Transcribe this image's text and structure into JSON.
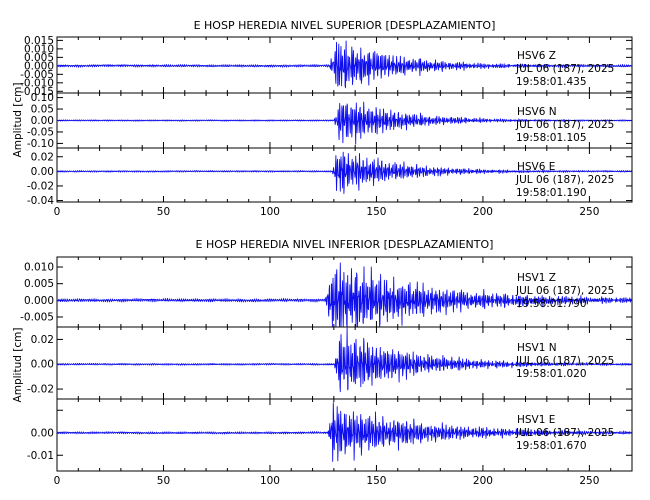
{
  "chart_data": [
    {
      "type": "line",
      "title": "E HOSP HEREDIA NIVEL SUPERIOR [DESPLAZAMIENTO]",
      "ylabel": "Amplitud [cm]",
      "xlabel": "",
      "xlim": [
        0,
        270
      ],
      "xticks": [
        "0",
        "50",
        "100",
        "150",
        "200",
        "250"
      ],
      "panels": [
        {
          "station": "HSV6",
          "component": "Z",
          "date": "JUL 06 (187), 2025",
          "time": "19:58:01.435",
          "ylim": [
            -0.016,
            0.017
          ],
          "yticks": [
            "0.015",
            "0.010",
            "0.005",
            "0.000",
            "-0.005",
            "-0.010",
            "-0.015"
          ],
          "peak": 0.015,
          "pre": 0.0006,
          "onset": 128,
          "decay": 28,
          "seed": 1
        },
        {
          "station": "HSV6",
          "component": "N",
          "date": "JUL 06 (187), 2025",
          "time": "19:58:01.105",
          "ylim": [
            -0.12,
            0.12
          ],
          "yticks": [
            "0.10",
            "0.05",
            "0.00",
            "-0.05",
            "-0.10"
          ],
          "peak": 0.1,
          "pre": 0.0025,
          "onset": 130,
          "decay": 26,
          "seed": 2
        },
        {
          "station": "HSV6",
          "component": "E",
          "date": "JUL 06 (187), 2025",
          "time": "19:58:01.190",
          "ylim": [
            -0.042,
            0.032
          ],
          "yticks": [
            "0.02",
            "0.00",
            "-0.02",
            "-0.04"
          ],
          "peak": 0.03,
          "pre": 0.0009,
          "onset": 129,
          "decay": 27,
          "seed": 3
        }
      ]
    },
    {
      "type": "line",
      "title": "E HOSP HEREDIA NIVEL INFERIOR [DESPLAZAMIENTO]",
      "ylabel": "Amplitud [cm]",
      "xlabel": "",
      "xlim": [
        0,
        270
      ],
      "xticks": [
        "0",
        "50",
        "100",
        "150",
        "200",
        "250"
      ],
      "panels": [
        {
          "station": "HSV1",
          "component": "Z",
          "date": "JUL 06 (187), 2025",
          "time": "19:58:01.790",
          "ylim": [
            -0.008,
            0.013
          ],
          "yticks": [
            "0.010",
            "0.005",
            "0.000",
            "-0.005"
          ],
          "peak": 0.011,
          "pre": 0.0004,
          "onset": 126,
          "decay": 45,
          "seed": 4
        },
        {
          "station": "HSV1",
          "component": "N",
          "date": "JUL 06 (187), 2025",
          "time": "19:58:01.020",
          "ylim": [
            -0.028,
            0.03
          ],
          "yticks": [
            "0.02",
            "0.00",
            "-0.02"
          ],
          "peak": 0.025,
          "pre": 0.0006,
          "onset": 130,
          "decay": 32,
          "seed": 5
        },
        {
          "station": "HSV1",
          "component": "E",
          "date": "JUL 06 (187), 2025",
          "time": "19:58:01.670",
          "ylim": [
            -0.017,
            0.015
          ],
          "yticks": [
            "0.00",
            "-0.01"
          ],
          "extra_ticks": [
            {
              "label": "0.01",
              "value": 0.01,
              "show": false
            }
          ],
          "peak": 0.012,
          "pre": 0.0004,
          "onset": 127,
          "decay": 40,
          "seed": 6
        }
      ]
    }
  ]
}
